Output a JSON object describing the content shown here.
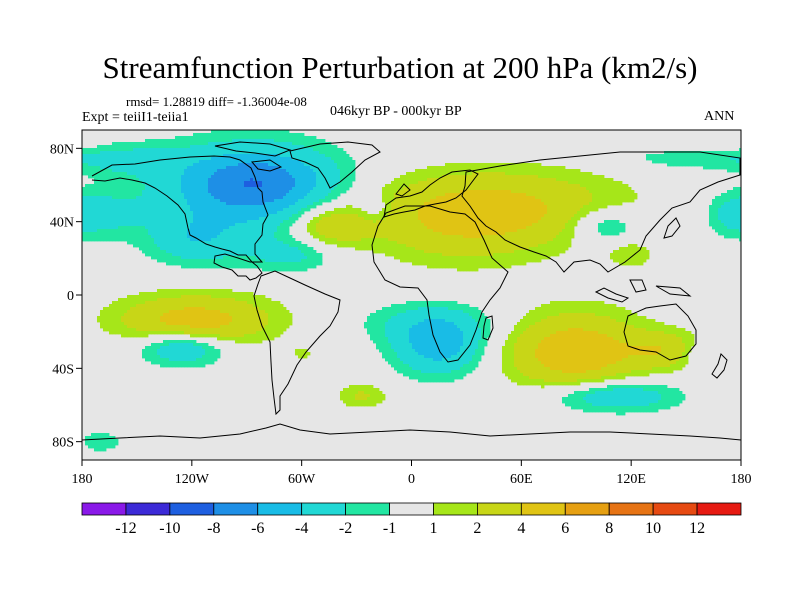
{
  "title": "Streamfunction Perturbation at 200 hPa (km2/s)",
  "subtitle": {
    "rmsd": "rmsd= 1.28819 diff= -1.36004e-08",
    "experiment": "Expt = teiiI1-teiia1",
    "period": "046kyr BP - 000kyr BP",
    "season": "ANN"
  },
  "axes": {
    "lat_ticks": [
      "80N",
      "40N",
      "0",
      "40S",
      "80S"
    ],
    "lat_values": [
      80,
      40,
      0,
      -40,
      -80
    ],
    "lon_ticks": [
      "180",
      "120W",
      "60W",
      "0",
      "60E",
      "120E",
      "180"
    ],
    "lon_values": [
      -180,
      -120,
      -60,
      0,
      60,
      120,
      180
    ],
    "lat_range": [
      -90,
      90
    ],
    "lon_range": [
      -180,
      180
    ]
  },
  "colorbar": {
    "labels": [
      "-12",
      "-10",
      "-8",
      "-6",
      "-4",
      "-2",
      "-1",
      "1",
      "2",
      "4",
      "6",
      "8",
      "10",
      "12"
    ],
    "colors": [
      "#8a19e8",
      "#3c2ad7",
      "#1e5fe0",
      "#1e8fe6",
      "#19bce6",
      "#21d8d5",
      "#22e6a2",
      "#e6e6e6",
      "#a6e619",
      "#c8d617",
      "#e0c414",
      "#e6a012",
      "#e67314",
      "#e64a12",
      "#e61a12"
    ]
  },
  "chart_data": {
    "type": "heatmap",
    "title": "Streamfunction Perturbation at 200 hPa (km2/s)",
    "units": "km2/s",
    "contour_levels": [
      -12,
      -10,
      -8,
      -6,
      -4,
      -2,
      -1,
      1,
      2,
      4,
      6,
      8,
      10,
      12
    ],
    "anomaly_centers": [
      {
        "lon": -85,
        "lat": 62,
        "value": -5.5,
        "rlon": 40,
        "rlat": 18
      },
      {
        "lon": -92,
        "lat": 52,
        "value": -3.0,
        "rlon": 60,
        "rlat": 30
      },
      {
        "lon": -118,
        "lat": 30,
        "value": -2.5,
        "rlon": 24,
        "rlat": 13
      },
      {
        "lon": -65,
        "lat": 22,
        "value": -2.0,
        "rlon": 22,
        "rlat": 9
      },
      {
        "lon": -158,
        "lat": 74,
        "value": -2.0,
        "rlon": 30,
        "rlat": 9
      },
      {
        "lon": 150,
        "lat": 76,
        "value": -2.0,
        "rlon": 34,
        "rlat": 7
      },
      {
        "lon": -168,
        "lat": 44,
        "value": -2.0,
        "rlon": 20,
        "rlat": 12
      },
      {
        "lon": 175,
        "lat": 44,
        "value": -2.0,
        "rlon": 15,
        "rlat": 12
      },
      {
        "lon": 106,
        "lat": 38,
        "value": -3.0,
        "rlon": 20,
        "rlat": 10
      },
      {
        "lon": -20,
        "lat": 47,
        "value": -1.8,
        "rlon": 9,
        "rlat": 7
      },
      {
        "lon": -125,
        "lat": -28,
        "value": -4.5,
        "rlon": 24,
        "rlat": 10
      },
      {
        "lon": 15,
        "lat": -28,
        "value": -5.0,
        "rlon": 24,
        "rlat": 16
      },
      {
        "lon": 10,
        "lat": -15,
        "value": -2.0,
        "rlon": 40,
        "rlat": 12
      },
      {
        "lon": 110,
        "lat": -55,
        "value": -4.0,
        "rlon": 35,
        "rlat": 9
      },
      {
        "lon": 160,
        "lat": -32,
        "value": -1.8,
        "rlon": 12,
        "rlat": 7
      },
      {
        "lon": -170,
        "lat": -80,
        "value": -1.8,
        "rlon": 12,
        "rlat": 6
      },
      {
        "lon": 45,
        "lat": 48,
        "value": 4.2,
        "rlon": 70,
        "rlat": 20
      },
      {
        "lon": 25,
        "lat": 35,
        "value": 2.0,
        "rlon": 50,
        "rlat": 22
      },
      {
        "lon": -45,
        "lat": 38,
        "value": 3.8,
        "rlon": 22,
        "rlat": 12
      },
      {
        "lon": 155,
        "lat": 82,
        "value": 1.8,
        "rlon": 28,
        "rlat": 5
      },
      {
        "lon": -120,
        "lat": -16,
        "value": 3.8,
        "rlon": 36,
        "rlat": 12
      },
      {
        "lon": -115,
        "lat": -10,
        "value": 2.0,
        "rlon": 50,
        "rlat": 16
      },
      {
        "lon": 90,
        "lat": -32,
        "value": 4.0,
        "rlon": 32,
        "rlat": 18
      },
      {
        "lon": 88,
        "lat": -28,
        "value": 2.0,
        "rlon": 44,
        "rlat": 25
      },
      {
        "lon": 138,
        "lat": -30,
        "value": 3.0,
        "rlon": 20,
        "rlat": 10
      },
      {
        "lon": -27,
        "lat": -55,
        "value": 2.2,
        "rlon": 14,
        "rlat": 7
      },
      {
        "lon": 120,
        "lat": 22,
        "value": 1.8,
        "rlon": 12,
        "rlat": 7
      },
      {
        "lon": -60,
        "lat": -32,
        "value": 1.6,
        "rlon": 5,
        "rlat": 3
      }
    ]
  }
}
